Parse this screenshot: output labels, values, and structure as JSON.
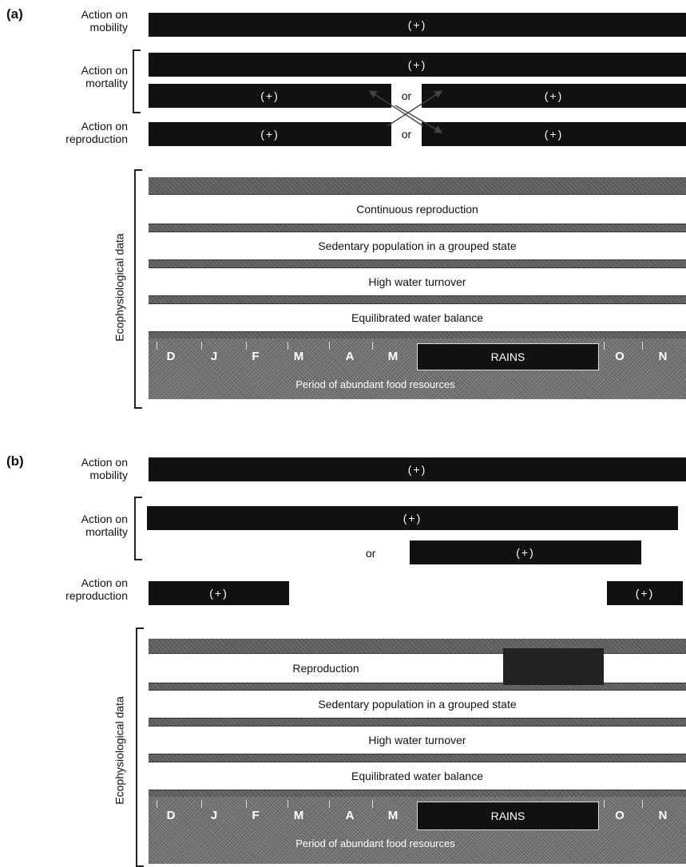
{
  "panel_a": {
    "label": "(a)",
    "mobility_label": "Action on\nmobility",
    "mortality_label": "Action on\nmortality",
    "reproduction_label": "Action on\nreproduction",
    "plus": "(+)",
    "or": "or",
    "eco_title": "Ecophysiological data",
    "bands": [
      "Continuous reproduction",
      "Sedentary population in a grouped state",
      "High water turnover",
      "Equilibrated water balance"
    ],
    "months_left": [
      "D",
      "J",
      "F",
      "M",
      "A",
      "M"
    ],
    "rains": "RAINS",
    "months_right": [
      "O",
      "N"
    ],
    "food": "Period of abundant food resources"
  },
  "panel_b": {
    "label": "(b)",
    "mobility_label": "Action on\nmobility",
    "mortality_label": "Action on\nmortality",
    "reproduction_label": "Action on\nreproduction",
    "plus": "(+)",
    "or": "or",
    "eco_title": "Ecophysiological data",
    "bands": [
      "Reproduction",
      "Sedentary population in a grouped state",
      "High water turnover",
      "Equilibrated water balance"
    ],
    "months_left": [
      "D",
      "J",
      "F",
      "M",
      "A",
      "M"
    ],
    "rains": "RAINS",
    "months_right": [
      "O",
      "N"
    ],
    "food": "Period of abundant food resources"
  },
  "colors": {
    "bar": "#111111",
    "eco_background": "#5a5a5a",
    "band": "#ffffff"
  }
}
